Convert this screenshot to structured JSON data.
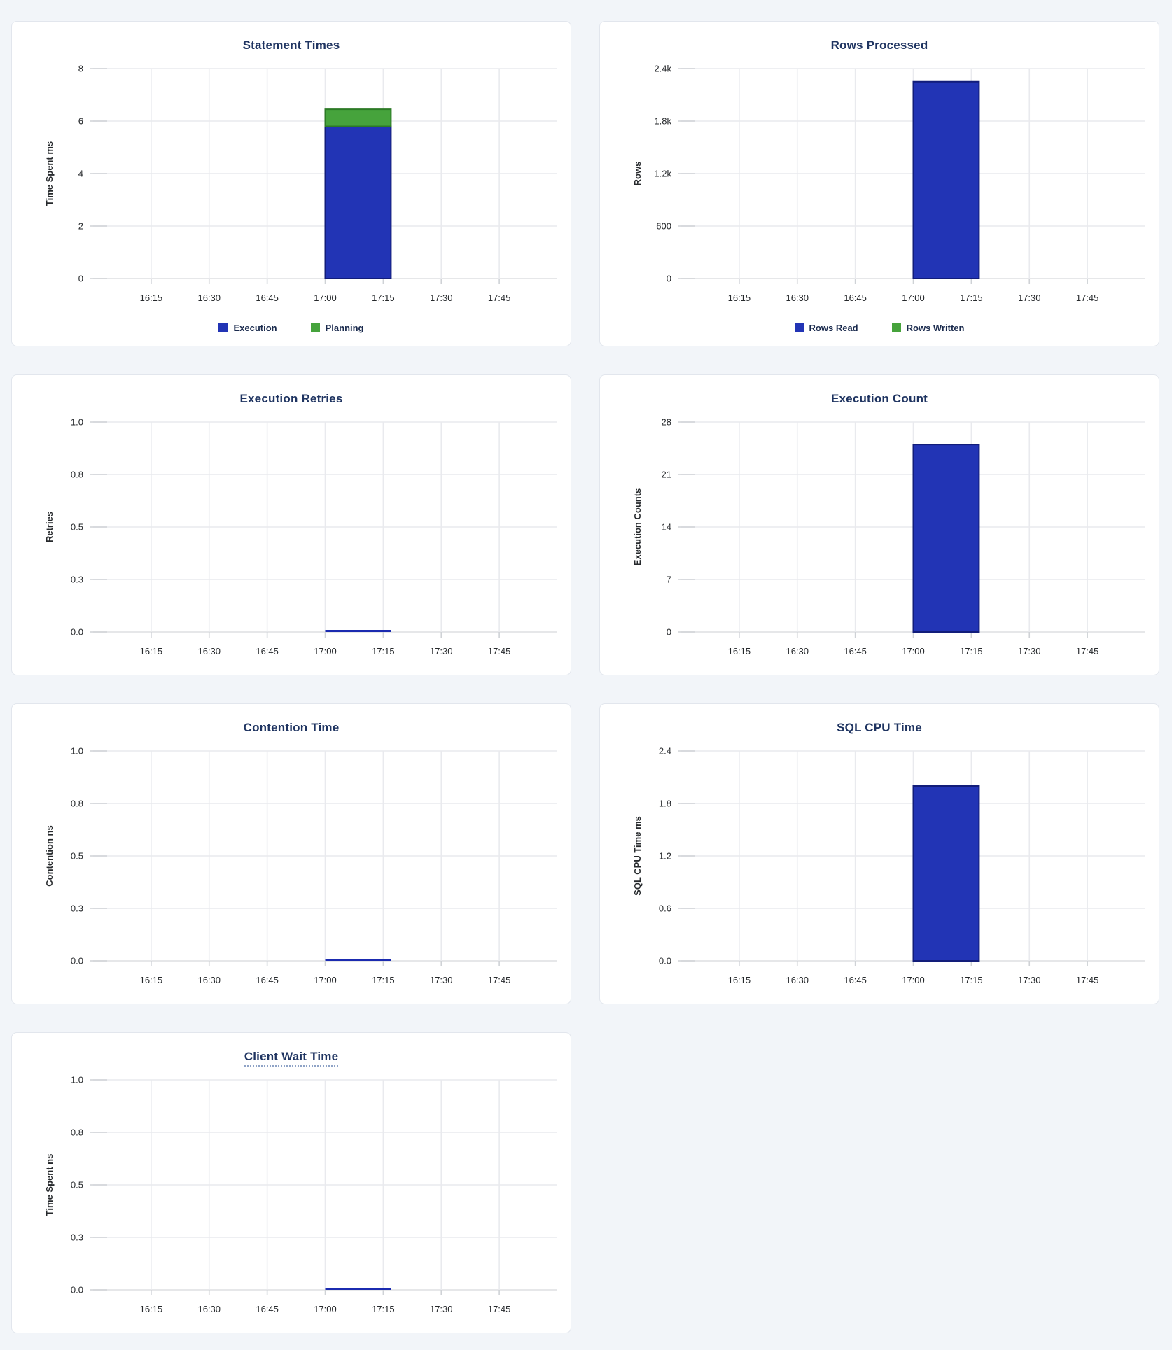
{
  "page": {
    "background": "#f2f5f9"
  },
  "colors": {
    "blue": "#2234b5",
    "blue_stroke": "#121d7a",
    "green": "#46a33c",
    "green_stroke": "#2c7a26",
    "zero_line": "#1b2bb0",
    "title": "#1f3461",
    "grid": "#e9eaee",
    "baseline": "#dddfe2",
    "tick_stub": "#cfd2d6",
    "tick_text": "#26292c",
    "card_border": "#e2e6ed",
    "card_bg": "#ffffff"
  },
  "time_axis": {
    "labels": [
      "16:15",
      "16:30",
      "16:45",
      "17:00",
      "17:15",
      "17:30",
      "17:45"
    ],
    "minutes": [
      15,
      30,
      45,
      60,
      75,
      90,
      105
    ],
    "domain_minutes": [
      0,
      120
    ]
  },
  "chart_data": [
    {
      "id": "statement-times",
      "type": "bar",
      "title": "Statement Times",
      "title_underline": false,
      "ylabel": "Time Spent ms",
      "ymax": 8,
      "ytick_labels": [
        "0",
        "2",
        "4",
        "6",
        "8"
      ],
      "window": {
        "start": "17:00",
        "end": "17:17",
        "start_min": 60,
        "end_min": 77
      },
      "series": [
        {
          "name": "Execution",
          "color": "blue",
          "value": 5.8
        },
        {
          "name": "Planning",
          "color": "green",
          "value": 0.65
        }
      ],
      "legend": [
        {
          "label": "Execution",
          "color": "blue"
        },
        {
          "label": "Planning",
          "color": "green"
        }
      ]
    },
    {
      "id": "rows-processed",
      "type": "bar",
      "title": "Rows Processed",
      "title_underline": false,
      "ylabel": "Rows",
      "ymax": 2400,
      "ytick_labels": [
        "0",
        "600",
        "1.2k",
        "1.8k",
        "2.4k"
      ],
      "window": {
        "start": "17:00",
        "end": "17:17",
        "start_min": 60,
        "end_min": 77
      },
      "series": [
        {
          "name": "Rows Read",
          "color": "blue",
          "value": 2250
        },
        {
          "name": "Rows Written",
          "color": "green",
          "value": 0
        }
      ],
      "legend": [
        {
          "label": "Rows Read",
          "color": "blue"
        },
        {
          "label": "Rows Written",
          "color": "green"
        }
      ]
    },
    {
      "id": "execution-retries",
      "type": "line",
      "title": "Execution Retries",
      "title_underline": false,
      "ylabel": "Retries",
      "ymax": 1,
      "ytick_labels": [
        "0.0",
        "0.3",
        "0.5",
        "0.8",
        "1.0"
      ],
      "window": {
        "start": "17:00",
        "end": "17:17",
        "start_min": 60,
        "end_min": 77
      },
      "series": [
        {
          "name": "",
          "color": "zero_line",
          "value": 0
        }
      ],
      "legend": null
    },
    {
      "id": "execution-count",
      "type": "bar",
      "title": "Execution Count",
      "title_underline": false,
      "ylabel": "Execution Counts",
      "ymax": 28,
      "ytick_labels": [
        "0",
        "7",
        "14",
        "21",
        "28"
      ],
      "window": {
        "start": "17:00",
        "end": "17:17",
        "start_min": 60,
        "end_min": 77
      },
      "series": [
        {
          "name": "",
          "color": "blue",
          "value": 25
        }
      ],
      "legend": null
    },
    {
      "id": "contention-time",
      "type": "line",
      "title": "Contention Time",
      "title_underline": false,
      "ylabel": "Contention ns",
      "ymax": 1,
      "ytick_labels": [
        "0.0",
        "0.3",
        "0.5",
        "0.8",
        "1.0"
      ],
      "window": {
        "start": "17:00",
        "end": "17:17",
        "start_min": 60,
        "end_min": 77
      },
      "series": [
        {
          "name": "",
          "color": "zero_line",
          "value": 0
        }
      ],
      "legend": null
    },
    {
      "id": "sql-cpu-time",
      "type": "bar",
      "title": "SQL CPU Time",
      "title_underline": false,
      "ylabel": "SQL CPU Time ms",
      "ymax": 2.4,
      "ytick_labels": [
        "0.0",
        "0.6",
        "1.2",
        "1.8",
        "2.4"
      ],
      "window": {
        "start": "17:00",
        "end": "17:17",
        "start_min": 60,
        "end_min": 77
      },
      "series": [
        {
          "name": "",
          "color": "blue",
          "value": 2.0
        }
      ],
      "legend": null
    },
    {
      "id": "client-wait-time",
      "type": "line",
      "title": "Client Wait Time",
      "title_underline": true,
      "ylabel": "Time Spent ns",
      "ymax": 1,
      "ytick_labels": [
        "0.0",
        "0.3",
        "0.5",
        "0.8",
        "1.0"
      ],
      "window": {
        "start": "17:00",
        "end": "17:17",
        "start_min": 60,
        "end_min": 77
      },
      "series": [
        {
          "name": "",
          "color": "zero_line",
          "value": 0
        }
      ],
      "legend": null
    }
  ]
}
